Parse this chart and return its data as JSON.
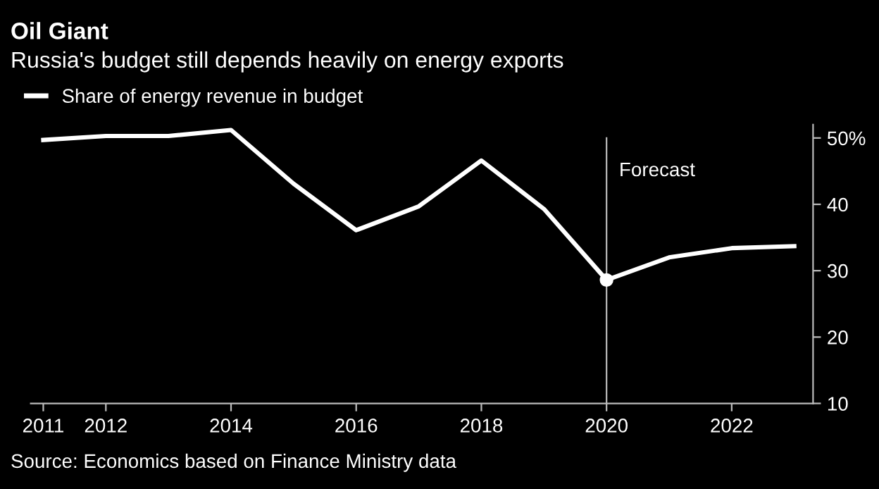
{
  "chart_data": {
    "type": "line",
    "title": "Oil Giant",
    "subtitle": "Russia's budget still depends heavily on energy exports",
    "x": [
      2011,
      2012,
      2013,
      2014,
      2015,
      2016,
      2017,
      2018,
      2019,
      2020,
      2021,
      2022,
      2023
    ],
    "series": [
      {
        "name": "Share of energy revenue in budget",
        "color": "#ffffff",
        "values": [
          49.7,
          50.3,
          50.3,
          51.2,
          43.1,
          36.1,
          39.7,
          46.6,
          39.3,
          28.6,
          32.0,
          33.4,
          33.7
        ]
      },
      {
        "type": "scatter",
        "color": "#ffffff",
        "x": [
          2020
        ],
        "values": [
          28.6
        ],
        "marker": "circle"
      }
    ],
    "xlim": [
      2010.8,
      2023.3
    ],
    "xticks": [
      2011,
      2012,
      2014,
      2016,
      2018,
      2020,
      2022
    ],
    "ylim": [
      10,
      52
    ],
    "yticks": [
      10,
      20,
      30,
      40,
      {
        "value": 50,
        "label": "50%"
      }
    ],
    "ref_lines": [
      {
        "axis": "x",
        "value": 2020,
        "label": "Forecast",
        "color": "#bbbbbb"
      }
    ],
    "legend": "top left",
    "grid": false,
    "marker": "none",
    "line_style": "solid",
    "annotations": [
      "Source: Economics based on Finance Ministry data"
    ]
  }
}
